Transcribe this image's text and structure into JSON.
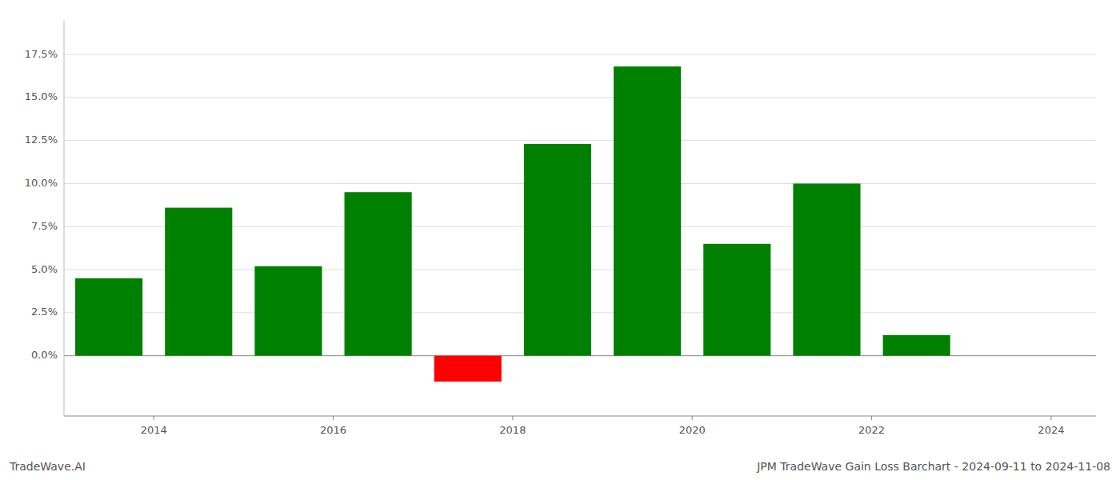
{
  "chart_data": {
    "type": "bar",
    "title": "JPM TradeWave Gain Loss Barchart - 2024-09-11 to 2024-11-08",
    "annotations": [
      "TradeWave.AI"
    ],
    "x": [
      2013.5,
      2014.5,
      2015.5,
      2016.5,
      2017.5,
      2018.5,
      2019.5,
      2020.5,
      2021.5,
      2022.5
    ],
    "values": [
      0.045,
      0.086,
      0.052,
      0.095,
      -0.015,
      0.123,
      0.168,
      0.065,
      0.1,
      0.012
    ],
    "colors": [
      "#008000",
      "#008000",
      "#008000",
      "#008000",
      "#ff0000",
      "#008000",
      "#008000",
      "#008000",
      "#008000",
      "#008000"
    ],
    "xlim": [
      2013.0,
      2024.5
    ],
    "ylim": [
      -0.035,
      0.195
    ],
    "xticks": [
      2014,
      2016,
      2018,
      2020,
      2022,
      2024
    ],
    "yticks": [
      {
        "value": 0.0,
        "label": "0.0%"
      },
      {
        "value": 0.025,
        "label": "2.5%"
      },
      {
        "value": 0.05,
        "label": "5.0%"
      },
      {
        "value": 0.075,
        "label": "7.5%"
      },
      {
        "value": 0.1,
        "label": "10.0%"
      },
      {
        "value": 0.125,
        "label": "12.5%"
      },
      {
        "value": 0.15,
        "label": "15.0%"
      },
      {
        "value": 0.175,
        "label": "17.5%"
      }
    ],
    "grid": true
  }
}
